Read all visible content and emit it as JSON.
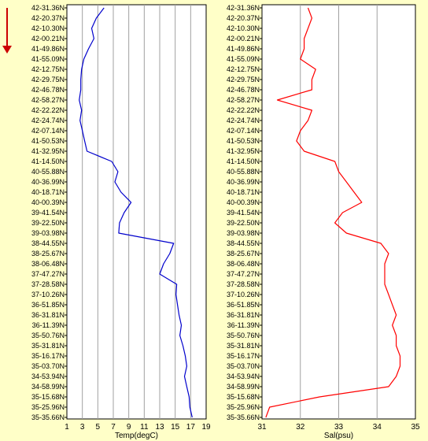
{
  "chart_data": [
    {
      "type": "line",
      "xlabel": "Temp(degC)",
      "ylabel": "",
      "title": "",
      "xlim": [
        1,
        19
      ],
      "xticks": [
        1,
        3,
        5,
        7,
        9,
        11,
        13,
        15,
        17,
        19
      ],
      "grid": true,
      "line_color": "#0000cc",
      "y_categories": [
        "42-31.36N",
        "42-20.37N",
        "42-10.30N",
        "42-00.21N",
        "41-49.86N",
        "41-55.09N",
        "42-12.75N",
        "42-29.75N",
        "42-46.78N",
        "42-58.27N",
        "42-22.22N",
        "42-24.74N",
        "42-07.14N",
        "41-50.53N",
        "41-32.95N",
        "41-14.50N",
        "40-55.88N",
        "40-36.99N",
        "40-18.71N",
        "40-00.39N",
        "39-41.54N",
        "39-22.50N",
        "39-03.98N",
        "38-44.55N",
        "38-25.67N",
        "38-06.48N",
        "37-47.27N",
        "37-28.58N",
        "37-10.26N",
        "36-51.85N",
        "36-31.81N",
        "36-11.39N",
        "35-50.76N",
        "35-31.81N",
        "35-16.17N",
        "35-03.70N",
        "34-53.94N",
        "34-58.99N",
        "35-15.68N",
        "35-25.96N",
        "35-35.66N"
      ],
      "values": [
        5.8,
        4.8,
        4.2,
        4.5,
        3.8,
        3.2,
        2.9,
        2.8,
        2.8,
        2.6,
        2.9,
        2.7,
        3.0,
        3.3,
        3.6,
        6.8,
        7.6,
        7.2,
        8.0,
        9.3,
        8.4,
        7.8,
        7.7,
        14.8,
        14.3,
        13.5,
        13.0,
        15.2,
        15.1,
        15.3,
        15.5,
        15.8,
        15.6,
        16.0,
        16.3,
        16.5,
        16.2,
        16.5,
        16.8,
        16.9,
        17.2
      ]
    },
    {
      "type": "line",
      "xlabel": "Sal(psu)",
      "ylabel": "",
      "title": "",
      "xlim": [
        31,
        35
      ],
      "xticks": [
        31,
        32,
        33,
        34,
        35
      ],
      "grid": true,
      "line_color": "#ff0000",
      "y_categories": [
        "42-31.36N",
        "42-20.37N",
        "42-10.30N",
        "42-00.21N",
        "41-49.86N",
        "41-55.09N",
        "42-12.75N",
        "42-29.75N",
        "42-46.78N",
        "42-58.27N",
        "42-22.22N",
        "42-24.74N",
        "42-07.14N",
        "41-50.53N",
        "41-32.95N",
        "41-14.50N",
        "40-55.88N",
        "40-36.99N",
        "40-18.71N",
        "40-00.39N",
        "39-41.54N",
        "39-22.50N",
        "39-03.98N",
        "38-44.55N",
        "38-25.67N",
        "38-06.48N",
        "37-47.27N",
        "37-28.58N",
        "37-10.26N",
        "36-51.85N",
        "36-31.81N",
        "36-11.39N",
        "35-50.76N",
        "35-31.81N",
        "35-16.17N",
        "35-03.70N",
        "34-53.94N",
        "34-58.99N",
        "35-15.68N",
        "35-25.96N",
        "35-35.66N"
      ],
      "values": [
        32.2,
        32.3,
        32.2,
        32.1,
        32.1,
        32.0,
        32.4,
        32.3,
        32.3,
        31.4,
        32.3,
        32.2,
        32.0,
        31.9,
        32.1,
        32.9,
        33.0,
        33.2,
        33.4,
        33.6,
        33.1,
        32.9,
        33.2,
        34.1,
        34.3,
        34.2,
        34.2,
        34.2,
        34.3,
        34.4,
        34.5,
        34.4,
        34.5,
        34.5,
        34.6,
        34.6,
        34.5,
        34.3,
        32.5,
        31.2,
        31.1
      ]
    }
  ],
  "ui": {
    "accent": "#cc0000",
    "background": "#ffffc8",
    "icon": "arrow-down-icon"
  }
}
